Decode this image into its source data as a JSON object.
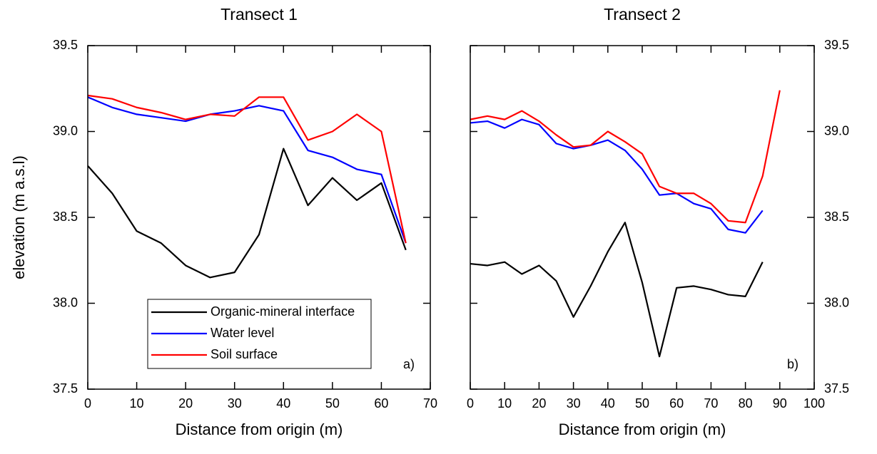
{
  "chart_data": [
    {
      "type": "line",
      "title": "Transect 1",
      "xlabel": "Distance from origin (m)",
      "ylabel": "elevation (m a.s.l)",
      "annotation": "a)",
      "legend": true,
      "ytick_side": "left",
      "xlim": [
        0,
        70
      ],
      "xticks": [
        0,
        10,
        20,
        30,
        40,
        50,
        60,
        70
      ],
      "ylim": [
        37.5,
        39.5
      ],
      "yticks": [
        37.5,
        {
          "value": 38,
          "label": "38.0"
        },
        38.5,
        {
          "value": 39,
          "label": "39.0"
        },
        39.5
      ],
      "series": [
        {
          "name": "Organic-mineral interface",
          "color": "#000000",
          "x": [
            0,
            5,
            10,
            15,
            20,
            25,
            30,
            35,
            40,
            45,
            50,
            55,
            60,
            65
          ],
          "values": [
            38.8,
            38.64,
            38.42,
            38.35,
            38.22,
            38.15,
            38.18,
            38.4,
            38.9,
            38.57,
            38.73,
            38.6,
            38.7,
            38.31
          ]
        },
        {
          "name": "Water level",
          "color": "#0000ff",
          "x": [
            0,
            5,
            10,
            15,
            20,
            25,
            30,
            35,
            40,
            45,
            50,
            55,
            60,
            65
          ],
          "values": [
            39.2,
            39.14,
            39.1,
            39.08,
            39.06,
            39.1,
            39.12,
            39.15,
            39.12,
            38.89,
            38.85,
            38.78,
            38.75,
            38.35
          ]
        },
        {
          "name": "Soil surface",
          "color": "#ff0000",
          "x": [
            0,
            5,
            10,
            15,
            20,
            25,
            30,
            35,
            40,
            45,
            50,
            55,
            60,
            65
          ],
          "values": [
            39.21,
            39.19,
            39.14,
            39.11,
            39.07,
            39.1,
            39.09,
            39.2,
            39.2,
            38.95,
            39.0,
            39.1,
            39.0,
            38.35
          ]
        }
      ]
    },
    {
      "type": "line",
      "title": "Transect 2",
      "xlabel": "Distance from origin (m)",
      "annotation": "b)",
      "legend": false,
      "ytick_side": "right",
      "xlim": [
        0,
        100
      ],
      "xticks": [
        0,
        10,
        20,
        30,
        40,
        50,
        60,
        70,
        80,
        90,
        100
      ],
      "ylim": [
        37.5,
        39.5
      ],
      "yticks": [
        37.5,
        {
          "value": 38,
          "label": "38.0"
        },
        38.5,
        {
          "value": 39,
          "label": "39.0"
        },
        39.5
      ],
      "series": [
        {
          "color": "#000000",
          "x": [
            0,
            5,
            10,
            15,
            20,
            25,
            30,
            35,
            40,
            45,
            50,
            55,
            60,
            65,
            70,
            75,
            80,
            85
          ],
          "values": [
            38.23,
            38.22,
            38.24,
            38.17,
            38.22,
            38.13,
            37.92,
            38.1,
            38.3,
            38.47,
            38.12,
            37.69,
            38.09,
            38.1,
            38.08,
            38.05,
            38.04,
            38.24
          ]
        },
        {
          "color": "#0000ff",
          "x": [
            0,
            5,
            10,
            15,
            20,
            25,
            30,
            35,
            40,
            45,
            50,
            55,
            60,
            65,
            70,
            75,
            80,
            85
          ],
          "values": [
            39.05,
            39.06,
            39.02,
            39.07,
            39.04,
            38.93,
            38.9,
            38.92,
            38.95,
            38.89,
            38.78,
            38.63,
            38.64,
            38.58,
            38.55,
            38.43,
            38.41,
            38.54
          ]
        },
        {
          "color": "#ff0000",
          "x": [
            0,
            5,
            10,
            15,
            20,
            25,
            30,
            35,
            40,
            45,
            50,
            55,
            60,
            65,
            70,
            75,
            80,
            85,
            90
          ],
          "values": [
            39.07,
            39.09,
            39.07,
            39.12,
            39.06,
            38.98,
            38.91,
            38.92,
            39.0,
            38.94,
            38.87,
            38.68,
            38.64,
            38.64,
            38.58,
            38.48,
            38.47,
            38.74,
            39.24
          ]
        }
      ]
    }
  ]
}
